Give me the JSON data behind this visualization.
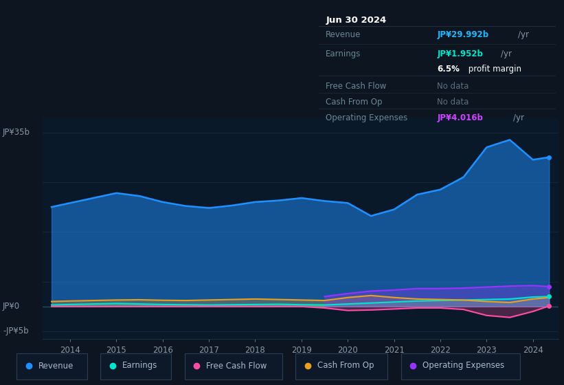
{
  "bg_color": "#0d1520",
  "chart_bg": "#0a1929",
  "grid_color": "#152535",
  "years": [
    2013.6,
    2014.0,
    2014.5,
    2015.0,
    2015.5,
    2016.0,
    2016.5,
    2017.0,
    2017.5,
    2018.0,
    2018.5,
    2019.0,
    2019.5,
    2020.0,
    2020.5,
    2021.0,
    2021.5,
    2022.0,
    2022.5,
    2023.0,
    2023.5,
    2024.0,
    2024.35
  ],
  "revenue": [
    20.0,
    20.8,
    21.8,
    22.8,
    22.2,
    21.0,
    20.2,
    19.8,
    20.3,
    21.0,
    21.3,
    21.8,
    21.2,
    20.8,
    18.2,
    19.5,
    22.5,
    23.5,
    26.0,
    32.0,
    33.5,
    29.5,
    30.0
  ],
  "earnings": [
    0.3,
    0.4,
    0.5,
    0.6,
    0.5,
    0.4,
    0.35,
    0.3,
    0.35,
    0.4,
    0.45,
    0.35,
    0.3,
    0.5,
    0.7,
    0.9,
    1.1,
    1.2,
    1.3,
    1.4,
    1.5,
    1.9,
    2.0
  ],
  "free_cash_flow": [
    0.0,
    0.0,
    0.0,
    0.0,
    0.0,
    0.0,
    0.0,
    0.0,
    0.0,
    0.0,
    0.0,
    0.0,
    -0.3,
    -0.8,
    -0.7,
    -0.5,
    -0.3,
    -0.3,
    -0.6,
    -1.8,
    -2.2,
    -1.0,
    0.1
  ],
  "cash_from_op": [
    1.0,
    1.1,
    1.2,
    1.3,
    1.35,
    1.25,
    1.2,
    1.3,
    1.4,
    1.5,
    1.4,
    1.3,
    1.2,
    1.8,
    2.2,
    1.8,
    1.5,
    1.4,
    1.3,
    1.0,
    0.8,
    1.5,
    1.8
  ],
  "op_expenses": [
    0.0,
    0.0,
    0.0,
    0.0,
    0.0,
    0.0,
    0.0,
    0.0,
    0.0,
    0.0,
    0.0,
    0.0,
    2.0,
    2.6,
    3.1,
    3.3,
    3.6,
    3.6,
    3.7,
    3.9,
    4.1,
    4.2,
    4.0
  ],
  "revenue_color": "#1e90ff",
  "earnings_color": "#00e5cc",
  "fcf_color": "#ff4da6",
  "cashop_color": "#e8a020",
  "opexp_color": "#9933ff",
  "tooltip": {
    "date": "Jun 30 2024",
    "revenue_label": "Revenue",
    "revenue_val": "JP¥29.992b",
    "earnings_label": "Earnings",
    "earnings_val": "JP¥1.952b",
    "profit_margin": "6.5%",
    "profit_margin_text": " profit margin",
    "fcf_label": "Free Cash Flow",
    "fcf_val": "No data",
    "cashop_label": "Cash From Op",
    "cashop_val": "No data",
    "opexp_label": "Operating Expenses",
    "opexp_val": "JP¥4.016b"
  },
  "legend": [
    {
      "label": "Revenue",
      "color": "#1e90ff"
    },
    {
      "label": "Earnings",
      "color": "#00e5cc"
    },
    {
      "label": "Free Cash Flow",
      "color": "#ff4da6"
    },
    {
      "label": "Cash From Op",
      "color": "#e8a020"
    },
    {
      "label": "Operating Expenses",
      "color": "#9933ff"
    }
  ],
  "xlim": [
    2013.4,
    2024.55
  ],
  "ylim": [
    -6.5,
    38
  ],
  "xticks": [
    2014,
    2015,
    2016,
    2017,
    2018,
    2019,
    2020,
    2021,
    2022,
    2023,
    2024
  ],
  "y_label_35": "JP¥35b",
  "y_label_0": "JP¥0",
  "y_label_neg5": "-JP¥5b"
}
